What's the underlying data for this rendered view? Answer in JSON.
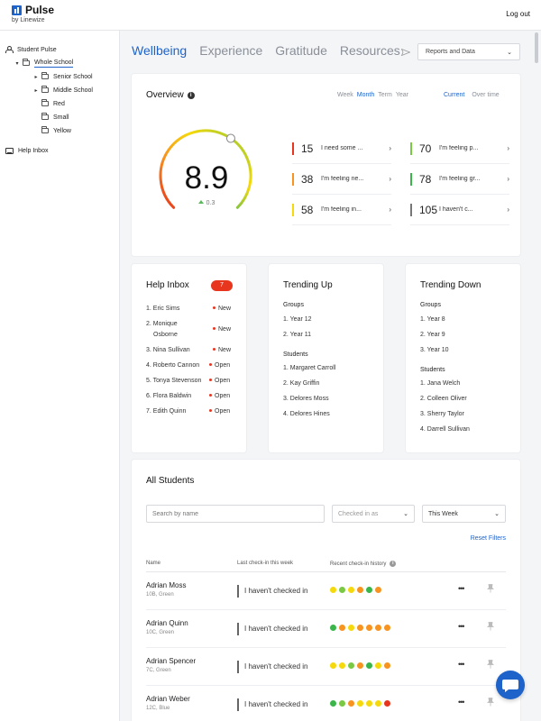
{
  "brand": {
    "name": "Pulse",
    "sub": "by Linewize"
  },
  "header": {
    "logout": "Log out"
  },
  "sidebar": {
    "items": [
      {
        "label": "Student Pulse"
      },
      {
        "label": "Whole School"
      },
      {
        "label": "Senior School"
      },
      {
        "label": "Middle School"
      },
      {
        "label": "Red"
      },
      {
        "label": "Small"
      },
      {
        "label": "Yellow"
      },
      {
        "label": "Help Inbox"
      }
    ]
  },
  "tabs": [
    {
      "label": "Wellbeing"
    },
    {
      "label": "Experience"
    },
    {
      "label": "Gratitude"
    },
    {
      "label": "Resources"
    }
  ],
  "reports_select": {
    "value": "Reports and Data"
  },
  "overview": {
    "title": "Overview",
    "periods": [
      "Week",
      "Month",
      "Term",
      "Year"
    ],
    "selected_period": "Month",
    "modes": [
      "Current",
      "Over time"
    ],
    "selected_mode": "Current",
    "score": "8.9",
    "score_fraction": 0.89,
    "delta": "0.3",
    "sentiments": [
      {
        "count": "15",
        "text": "I need some ...",
        "color": "#e8351d"
      },
      {
        "count": "70",
        "text": "I'm feeling p...",
        "color": "#7ac943"
      },
      {
        "count": "38",
        "text": "I'm feeling ne...",
        "color": "#f7931e"
      },
      {
        "count": "78",
        "text": "I'm feeling gr...",
        "color": "#39b54a"
      },
      {
        "count": "58",
        "text": "I'm feeling in...",
        "color": "#f5d90a"
      },
      {
        "count": "105",
        "text": "I haven't c...",
        "color": "#777777"
      }
    ]
  },
  "help_inbox": {
    "title": "Help Inbox",
    "badge": "7",
    "items": [
      {
        "name": "1. Eric Sims",
        "status": "New"
      },
      {
        "name": "2. Monique",
        "name2": "Osborne",
        "status": "New"
      },
      {
        "name": "3. Nina Sullivan",
        "status": "New"
      },
      {
        "name": "4. Roberto Cannon",
        "status": "Open"
      },
      {
        "name": "5. Tonya Stevenson",
        "status": "Open"
      },
      {
        "name": "6. Flora Baldwin",
        "status": "Open"
      },
      {
        "name": "7. Edith Quinn",
        "status": "Open"
      }
    ]
  },
  "trending_up": {
    "title": "Trending Up",
    "groups_label": "Groups",
    "groups": [
      "1. Year 12",
      "2. Year 11"
    ],
    "students_label": "Students",
    "students": [
      "1. Margaret Carroll",
      "2. Kay Griffin",
      "3. Delores Moss",
      "4. Delores Hines"
    ]
  },
  "trending_down": {
    "title": "Trending Down",
    "groups_label": "Groups",
    "groups": [
      "1. Year 8",
      "2. Year 9",
      "3. Year 10"
    ],
    "students_label": "Students",
    "students": [
      "1. Jana Welch",
      "2. Colleen Oliver",
      "3. Sherry Taylor",
      "4. Darrell Sullivan"
    ]
  },
  "all_students": {
    "title": "All Students",
    "search_placeholder": "Search by name",
    "checked_in_as": "Checked in as",
    "week_select": "This Week",
    "reset": "Reset Filters",
    "columns": [
      "Name",
      "Last check-in this week",
      "Recent check-in history"
    ],
    "rows": [
      {
        "name": "Adrian Moss",
        "cls": "10B, Green",
        "check": "I haven't checked in",
        "history": [
          "#f5d90a",
          "#7ac943",
          "#f5d90a",
          "#f7931e",
          "#39b54a",
          "#f7931e"
        ]
      },
      {
        "name": "Adrian Quinn",
        "cls": "10C, Green",
        "check": "I haven't checked in",
        "history": [
          "#39b54a",
          "#f7931e",
          "#f5d90a",
          "#f7931e",
          "#f7931e",
          "#f7931e",
          "#f7931e"
        ]
      },
      {
        "name": "Adrian Spencer",
        "cls": "7C, Green",
        "check": "I haven't checked in",
        "history": [
          "#f5d90a",
          "#f5d90a",
          "#7ac943",
          "#f7931e",
          "#39b54a",
          "#f5d90a",
          "#f7931e"
        ]
      },
      {
        "name": "Adrian Weber",
        "cls": "12C, Blue",
        "check": "I haven't checked in",
        "history": [
          "#39b54a",
          "#7ac943",
          "#f7931e",
          "#f5d90a",
          "#f5d90a",
          "#f5d90a",
          "#e8351d"
        ]
      }
    ]
  }
}
